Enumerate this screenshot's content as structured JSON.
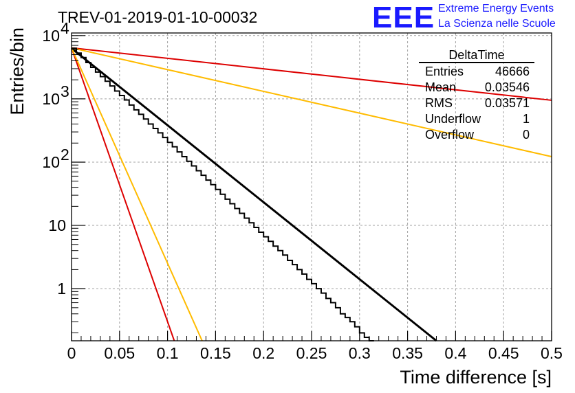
{
  "title": "TREV-01-2019-01-10-00032",
  "logo": {
    "letters": "EEE",
    "line1": "Extreme Energy Events",
    "line2": "La Scienza nelle Scuole"
  },
  "stats_box": {
    "name": "DeltaTime",
    "rows": [
      {
        "label": "Entries",
        "value": "46666"
      },
      {
        "label": "Mean",
        "value": "0.03546"
      },
      {
        "label": "RMS",
        "value": "0.03571"
      },
      {
        "label": "Underflow",
        "value": "1"
      },
      {
        "label": "Overflow",
        "value": "0"
      }
    ]
  },
  "chart_data": {
    "type": "line",
    "xlabel": "Time difference [s]",
    "ylabel": "Entries/bin",
    "xlim": [
      0,
      0.5
    ],
    "ylim": [
      0.15,
      11000
    ],
    "y_scale": "log",
    "grid": true,
    "x_ticks": [
      0,
      0.05,
      0.1,
      0.15,
      0.2,
      0.25,
      0.3,
      0.35,
      0.4,
      0.45,
      0.5
    ],
    "x_tick_labels": [
      "0",
      "0.05",
      "0.1",
      "0.15",
      "0.2",
      "0.25",
      "0.3",
      "0.35",
      "0.4",
      "0.45",
      "0.5"
    ],
    "y_ticks": [
      1,
      10,
      100,
      1000,
      10000
    ],
    "y_tick_labels": [
      {
        "base": "1",
        "exp": ""
      },
      {
        "base": "10",
        "exp": ""
      },
      {
        "base": "10",
        "exp": "2"
      },
      {
        "base": "10",
        "exp": "3"
      },
      {
        "base": "10",
        "exp": "4"
      }
    ],
    "histogram": {
      "bin_width": 0.005,
      "color": "#000000",
      "counts": [
        6300,
        5300,
        4500,
        3750,
        3150,
        2650,
        2250,
        1900,
        1600,
        1330,
        1130,
        960,
        800,
        670,
        570,
        480,
        400,
        340,
        290,
        245,
        205,
        175,
        145,
        122,
        103,
        87,
        73,
        62,
        52,
        44,
        37,
        31,
        26,
        22,
        18.5,
        15.5,
        13,
        11,
        9.3,
        7.8,
        6.6,
        5.6,
        4.7,
        4,
        3.4,
        2.8,
        2.4,
        2,
        1.7,
        1.4,
        1.2,
        1,
        0.85,
        0.7,
        0.6,
        0.5,
        0.4,
        0.35,
        0.3,
        0.25,
        0.2,
        0.17,
        0.14
      ]
    },
    "lines": [
      {
        "color": "#000000",
        "x": [
          0,
          0.38
        ],
        "y": [
          6300,
          0.15
        ]
      },
      {
        "color": "#dd0000",
        "x": [
          0,
          0.5
        ],
        "y": [
          6400,
          950
        ]
      },
      {
        "color": "#ffbb00",
        "x": [
          0,
          0.5
        ],
        "y": [
          6400,
          122
        ]
      },
      {
        "color": "#dd0000",
        "x": [
          0,
          0.107
        ],
        "y": [
          6400,
          0.15
        ]
      },
      {
        "color": "#ffbb00",
        "x": [
          0,
          0.136
        ],
        "y": [
          6400,
          0.15
        ]
      }
    ]
  }
}
